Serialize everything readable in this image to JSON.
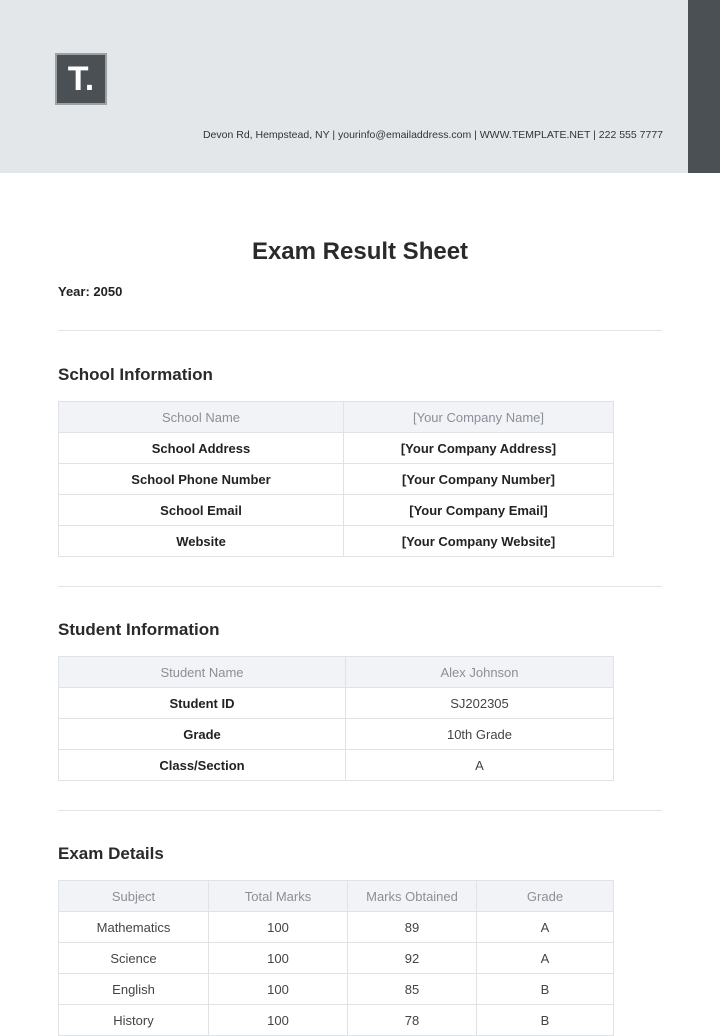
{
  "header": {
    "logo": "T.",
    "contact": "Devon Rd, Hempstead, NY | yourinfo@emailaddress.com | WWW.TEMPLATE.NET | 222 555 7777"
  },
  "title": "Exam Result Sheet",
  "year": "Year: 2050",
  "school": {
    "heading": "School Information",
    "header": [
      "School Name",
      "[Your Company Name]"
    ],
    "rows": [
      [
        "School Address",
        "[Your Company Address]"
      ],
      [
        "School Phone Number",
        "[Your Company Number]"
      ],
      [
        "School Email",
        "[Your Company Email]"
      ],
      [
        "Website",
        "[Your Company Website]"
      ]
    ]
  },
  "student": {
    "heading": "Student Information",
    "header": [
      "Student Name",
      "Alex Johnson"
    ],
    "rows": [
      [
        "Student ID",
        "SJ202305"
      ],
      [
        "Grade",
        "10th Grade"
      ],
      [
        "Class/Section",
        "A"
      ]
    ]
  },
  "exam": {
    "heading": "Exam Details",
    "columns": [
      "Subject",
      "Total Marks",
      "Marks Obtained",
      "Grade"
    ],
    "rows": [
      [
        "Mathematics",
        "100",
        "89",
        "A"
      ],
      [
        "Science",
        "100",
        "92",
        "A"
      ],
      [
        "English",
        "100",
        "85",
        "B"
      ],
      [
        "History",
        "100",
        "78",
        "B"
      ]
    ]
  }
}
